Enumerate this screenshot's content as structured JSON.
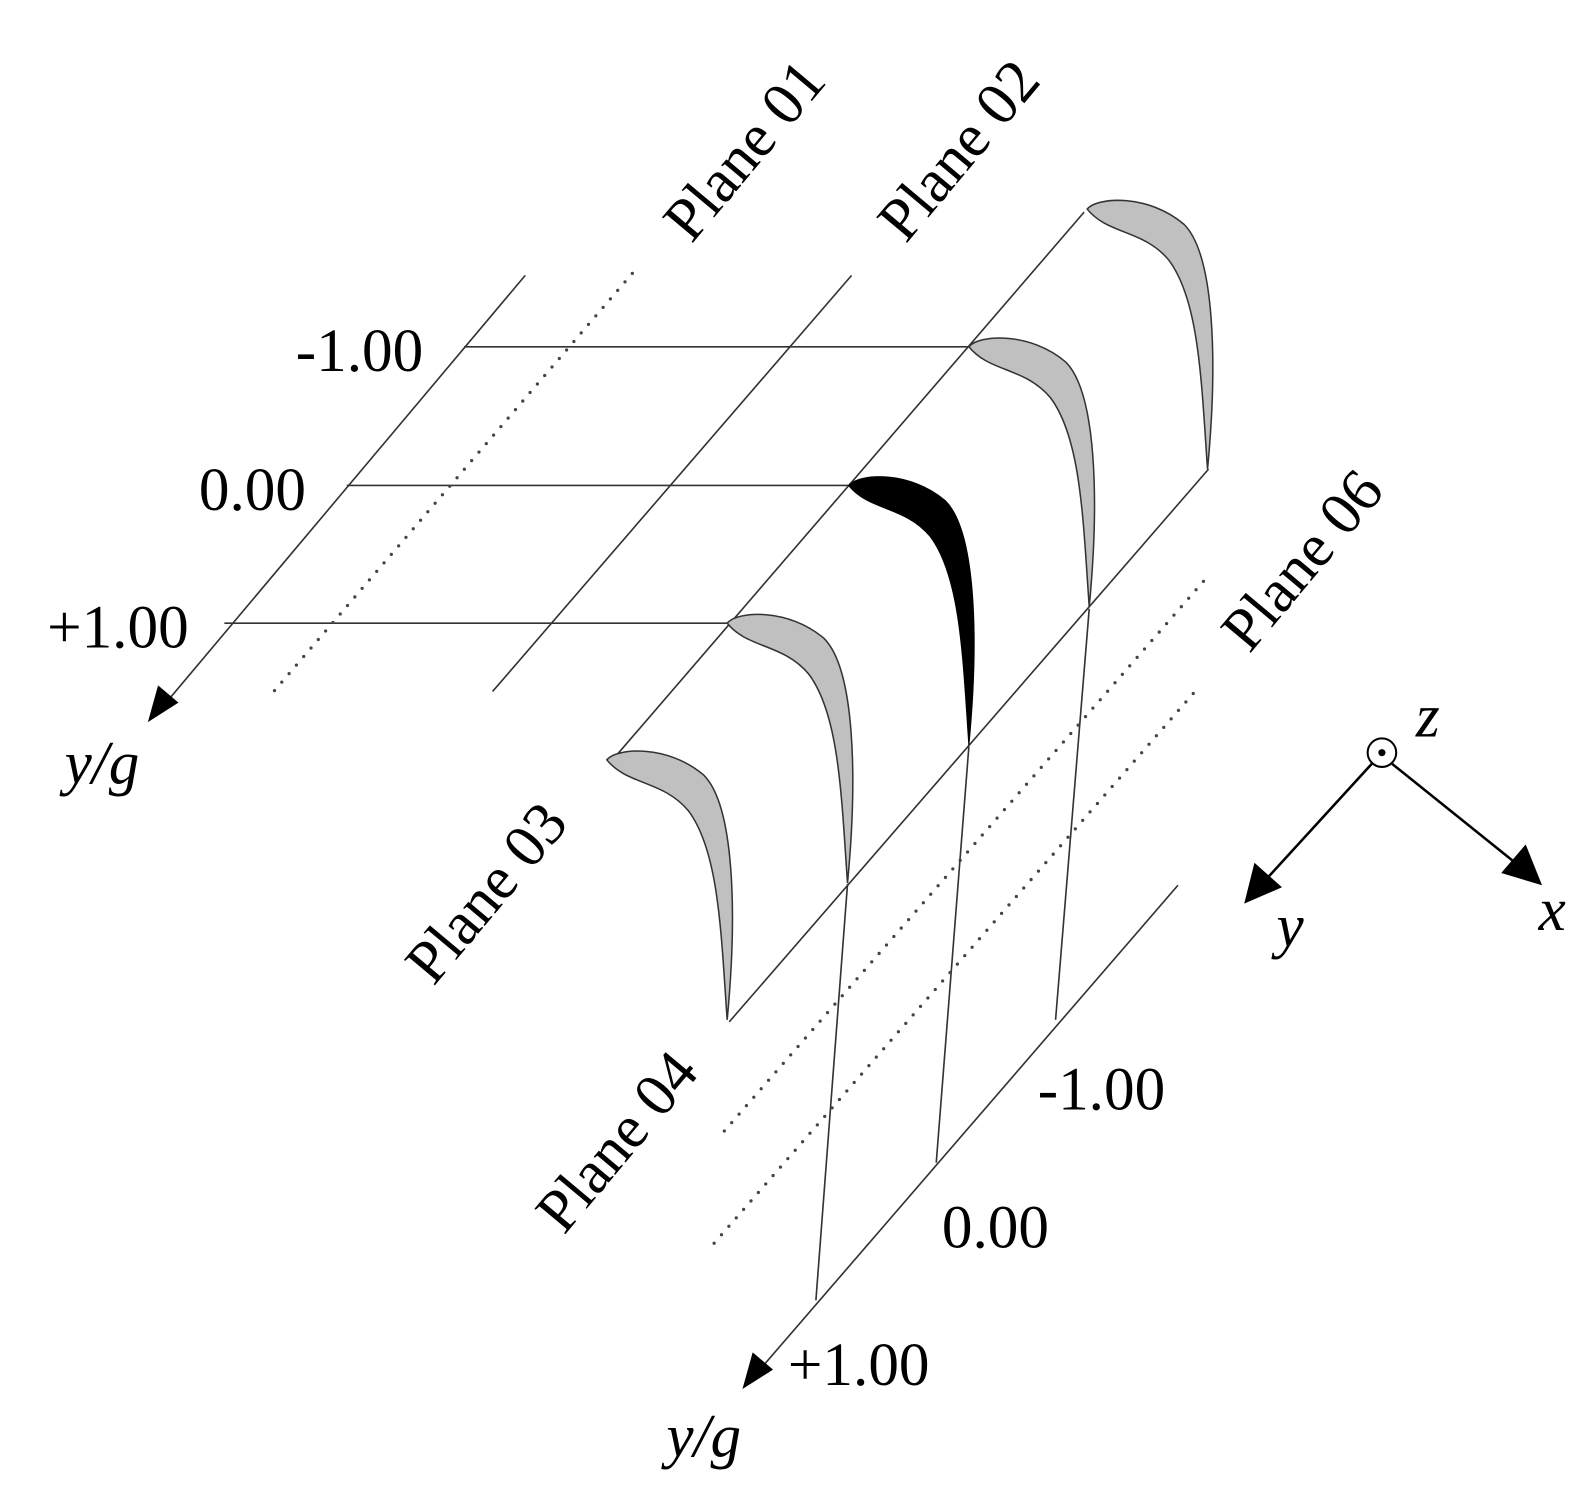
{
  "planes": [
    {
      "label": "Plane 01"
    },
    {
      "label": "Plane 02"
    },
    {
      "label": "Plane 03"
    },
    {
      "label": "Plane 04"
    },
    {
      "label": "Plane 06"
    }
  ],
  "inlet_axis": {
    "ticks": [
      "-1.00",
      "0.00",
      "+1.00"
    ],
    "label": "y/g"
  },
  "outlet_axis": {
    "ticks": [
      "-1.00",
      "0.00",
      "+1.00"
    ],
    "label": "y/g"
  },
  "coordinates": {
    "z": "z",
    "y": "y",
    "x": "x"
  }
}
